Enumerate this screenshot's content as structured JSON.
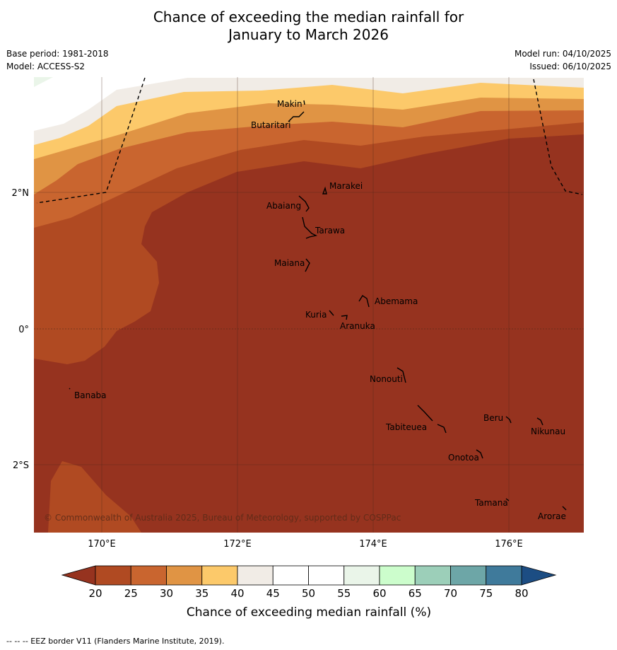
{
  "title": {
    "line1": "Chance of exceeding the median rainfall for",
    "line2": "January to March 2026"
  },
  "meta": {
    "base_period": "Base period: 1981-2018",
    "model": "Model: ACCESS-S2",
    "model_run": "Model run: 04/10/2025",
    "issued": "Issued: 06/10/2025"
  },
  "axes": {
    "lon_labels": [
      "170°E",
      "172°E",
      "174°E",
      "176°E"
    ],
    "lat_labels": [
      "2°N",
      "0°",
      "2°S"
    ]
  },
  "islands": [
    {
      "name": "Makin"
    },
    {
      "name": "Butaritari"
    },
    {
      "name": "Marakei"
    },
    {
      "name": "Abaiang"
    },
    {
      "name": "Tarawa"
    },
    {
      "name": "Maiana"
    },
    {
      "name": "Abemama"
    },
    {
      "name": "Kuria"
    },
    {
      "name": "Aranuka"
    },
    {
      "name": "Nonouti"
    },
    {
      "name": "Banaba"
    },
    {
      "name": "Beru"
    },
    {
      "name": "Tabiteuea"
    },
    {
      "name": "Nikunau"
    },
    {
      "name": "Onotoa"
    },
    {
      "name": "Tamana"
    },
    {
      "name": "Arorae"
    }
  ],
  "copyright": "© Commonwealth of Australia 2025, Bureau of Meteorology, supported by COSPPac",
  "colorbar": {
    "label": "Chance of exceeding median rainfall (%)",
    "ticks": [
      "20",
      "25",
      "30",
      "35",
      "40",
      "45",
      "50",
      "55",
      "60",
      "65",
      "70",
      "75",
      "80"
    ],
    "colors": [
      "#b04a22",
      "#c9652f",
      "#e09444",
      "#fcc96a",
      "#f1ece6",
      "#ffffff",
      "#ffffff",
      "#eaf5e9",
      "#ccfdcc",
      "#9ccfb9",
      "#6da6a7",
      "#3f7a9b"
    ],
    "under_color": "#96331f",
    "over_color": "#1c4d83"
  },
  "footnote": "--  --  -- EEZ border V11 (Flanders Marine Institute, 2019)."
}
